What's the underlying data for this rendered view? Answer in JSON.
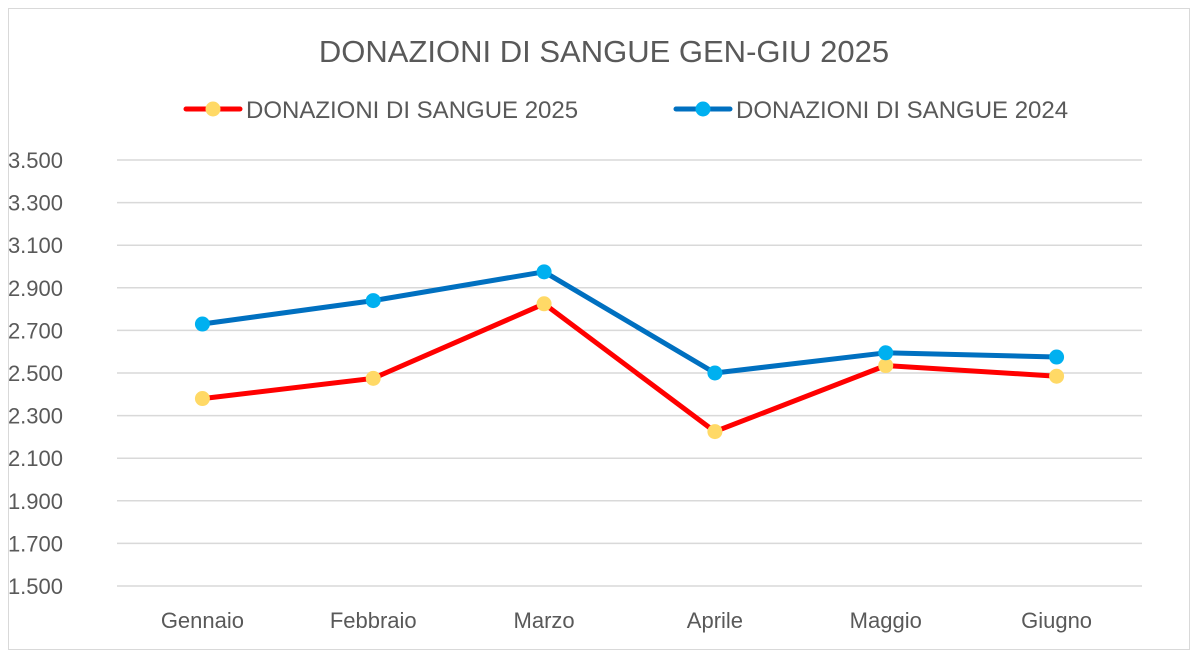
{
  "chart_data": {
    "type": "line",
    "title": "DONAZIONI DI SANGUE GEN-GIU 2025",
    "categories": [
      "Gennaio",
      "Febbraio",
      "Marzo",
      "Aprile",
      "Maggio",
      "Giugno"
    ],
    "series": [
      {
        "name": "DONAZIONI DI SANGUE 2025",
        "values": [
          2380,
          2475,
          2825,
          2225,
          2535,
          2485
        ],
        "line_color": "#ff0000",
        "marker_color": "#ffd966"
      },
      {
        "name": "DONAZIONI DI SANGUE 2024",
        "values": [
          2730,
          2840,
          2975,
          2500,
          2595,
          2575
        ],
        "line_color": "#0070c0",
        "marker_color": "#00b0f0"
      }
    ],
    "ylim": [
      1500,
      3500
    ],
    "yticks": [
      "3.500",
      "3.300",
      "3.100",
      "2.900",
      "2.700",
      "2.500",
      "2.300",
      "2.100",
      "1.900",
      "1.700",
      "1.500"
    ],
    "ytick_values": [
      3500,
      3300,
      3100,
      2900,
      2700,
      2500,
      2300,
      2100,
      1900,
      1700,
      1500
    ],
    "grid": true,
    "legend_position": "top"
  }
}
